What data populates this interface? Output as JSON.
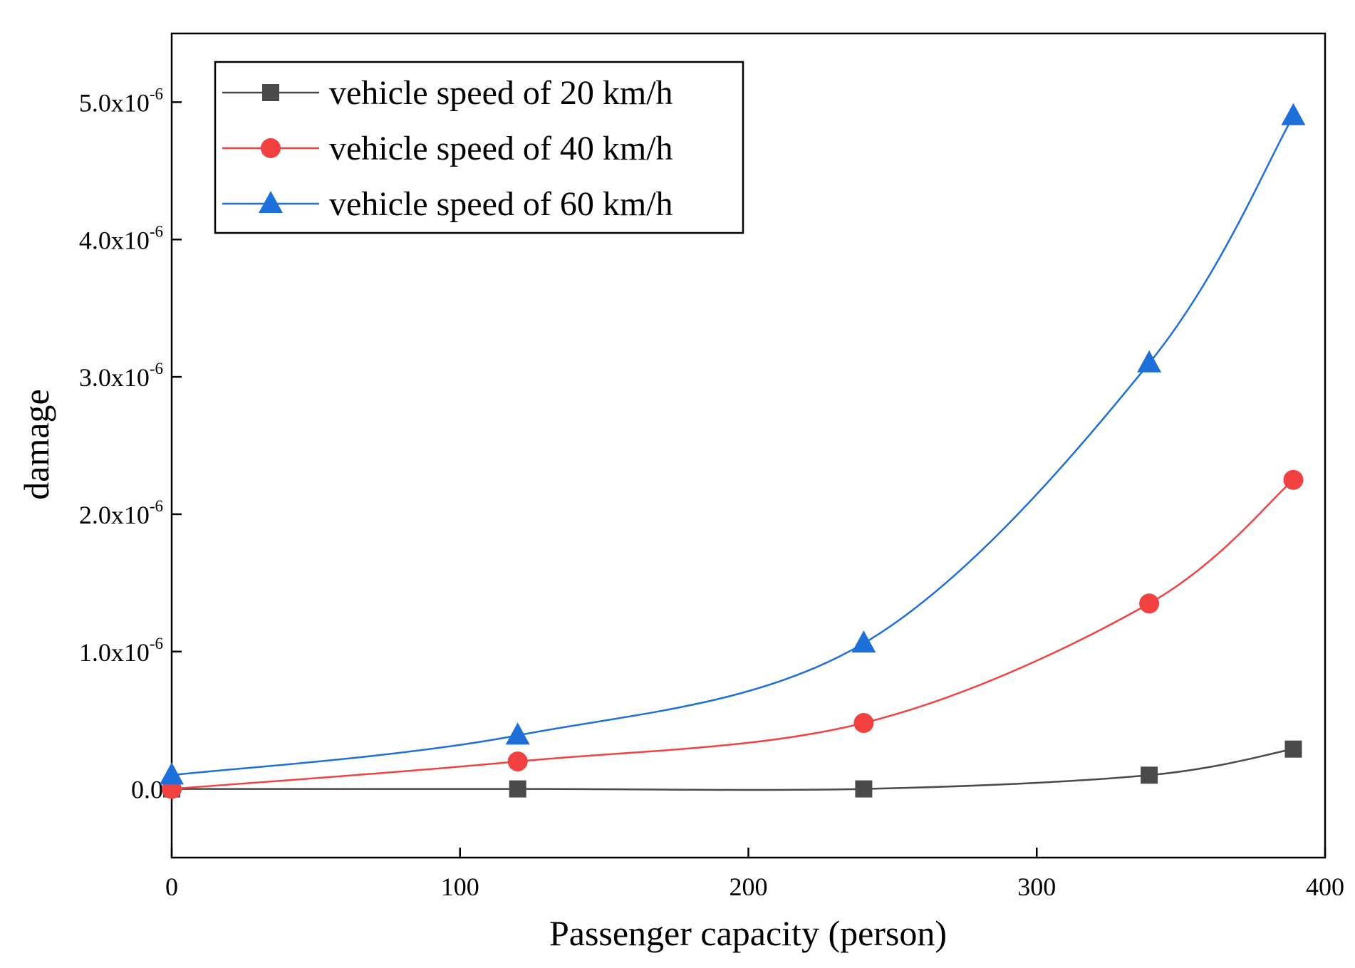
{
  "chart_data": {
    "type": "line",
    "title": "",
    "xlabel": "Passenger capacity (person)",
    "ylabel": "damage",
    "xlim": [
      0,
      400
    ],
    "ylim": [
      -5e-07,
      5.5e-06
    ],
    "grid": false,
    "legend_position": "top-left",
    "x_ticks": [
      {
        "value": 0,
        "label": "0"
      },
      {
        "value": 100,
        "label": "100"
      },
      {
        "value": 200,
        "label": "200"
      },
      {
        "value": 300,
        "label": "300"
      },
      {
        "value": 400,
        "label": "400"
      }
    ],
    "y_ticks": [
      {
        "value": 0,
        "label": "0.0",
        "sup": ""
      },
      {
        "value": 1e-06,
        "label": "1.0x10",
        "sup": "-6"
      },
      {
        "value": 2e-06,
        "label": "2.0x10",
        "sup": "-6"
      },
      {
        "value": 3e-06,
        "label": "3.0x10",
        "sup": "-6"
      },
      {
        "value": 4e-06,
        "label": "4.0x10",
        "sup": "-6"
      },
      {
        "value": 5e-06,
        "label": "5.0x10",
        "sup": "-6"
      }
    ],
    "series": [
      {
        "name": "vehicle speed of 20 km/h",
        "color": "#4a4a4a",
        "marker": "square",
        "x": [
          0,
          120,
          240,
          339,
          389
        ],
        "y": [
          0,
          0,
          0,
          1e-07,
          2.9e-07
        ]
      },
      {
        "name": "vehicle speed of 40 km/h",
        "color": "#f24141",
        "marker": "circle",
        "x": [
          0,
          120,
          240,
          339,
          389
        ],
        "y": [
          0,
          2e-07,
          4.8e-07,
          1.35e-06,
          2.25e-06
        ]
      },
      {
        "name": "vehicle speed of 60 km/h",
        "color": "#1f6fd8",
        "marker": "triangle",
        "x": [
          0,
          120,
          240,
          339,
          389
        ],
        "y": [
          1e-07,
          3.9e-07,
          1.06e-06,
          3.1e-06,
          4.9e-06
        ]
      }
    ]
  }
}
